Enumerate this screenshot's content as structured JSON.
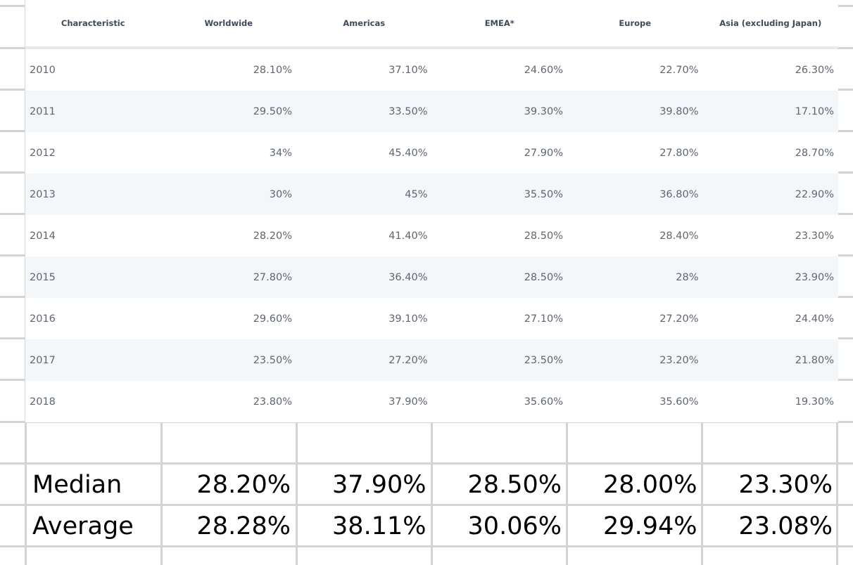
{
  "table": {
    "headers": [
      "Characteristic",
      "Worldwide",
      "Americas",
      "EMEA*",
      "Europe",
      "Asia (excluding Japan)"
    ],
    "rows": [
      [
        "2010",
        "28.10%",
        "37.10%",
        "24.60%",
        "22.70%",
        "26.30%"
      ],
      [
        "2011",
        "29.50%",
        "33.50%",
        "39.30%",
        "39.80%",
        "17.10%"
      ],
      [
        "2012",
        "34%",
        "45.40%",
        "27.90%",
        "27.80%",
        "28.70%"
      ],
      [
        "2013",
        "30%",
        "45%",
        "35.50%",
        "36.80%",
        "22.90%"
      ],
      [
        "2014",
        "28.20%",
        "41.40%",
        "28.50%",
        "28.40%",
        "23.30%"
      ],
      [
        "2015",
        "27.80%",
        "36.40%",
        "28.50%",
        "28%",
        "23.90%"
      ],
      [
        "2016",
        "29.60%",
        "39.10%",
        "27.10%",
        "27.20%",
        "24.40%"
      ],
      [
        "2017",
        "23.50%",
        "27.20%",
        "23.50%",
        "23.20%",
        "21.80%"
      ],
      [
        "2018",
        "23.80%",
        "37.90%",
        "35.60%",
        "35.60%",
        "19.30%"
      ]
    ]
  },
  "summary": {
    "median": [
      "Median",
      "28.20%",
      "37.90%",
      "28.50%",
      "28.00%",
      "23.30%"
    ],
    "average": [
      "Average",
      "28.28%",
      "38.11%",
      "30.06%",
      "29.94%",
      "23.08%"
    ]
  },
  "colors": {
    "gridline": "#d4d4d4",
    "header_text": "#3d4b5c",
    "cell_text": "#5f6670",
    "alt_row": "#f4f7fa"
  }
}
